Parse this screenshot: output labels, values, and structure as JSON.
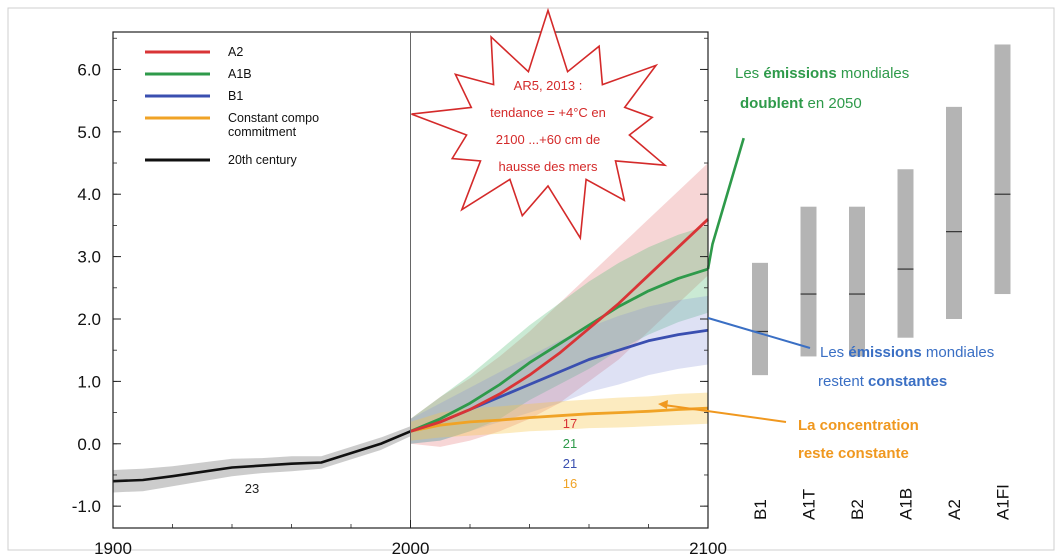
{
  "chart_data": {
    "type": "line",
    "xlim": [
      1900,
      2100
    ],
    "ylim": [
      -1.35,
      6.6
    ],
    "x_ticks": [
      "1900",
      "2000",
      "2100"
    ],
    "y_ticks": [
      "6.0",
      "5.0",
      "4.0",
      "3.0",
      "2.0",
      "1.0",
      "0.0",
      "-1.0"
    ],
    "legend_position": "top-left",
    "series": [
      {
        "name": "A2",
        "color": "#d93436",
        "x": [
          2000,
          2010,
          2020,
          2030,
          2040,
          2050,
          2060,
          2070,
          2080,
          2090,
          2100
        ],
        "y": [
          0.2,
          0.35,
          0.55,
          0.8,
          1.1,
          1.45,
          1.85,
          2.25,
          2.7,
          3.15,
          3.6
        ],
        "band": [
          0.2,
          0.4,
          0.5,
          0.6,
          0.7,
          0.8,
          0.85,
          0.9,
          0.9,
          0.9,
          0.9
        ]
      },
      {
        "name": "A1B",
        "color": "#2e9a4a",
        "x": [
          2000,
          2010,
          2020,
          2030,
          2040,
          2050,
          2060,
          2070,
          2080,
          2090,
          2100
        ],
        "y": [
          0.2,
          0.4,
          0.65,
          0.95,
          1.3,
          1.6,
          1.9,
          2.2,
          2.45,
          2.65,
          2.8
        ],
        "band": [
          0.2,
          0.35,
          0.45,
          0.55,
          0.6,
          0.65,
          0.7,
          0.7,
          0.7,
          0.7,
          0.7
        ]
      },
      {
        "name": "B1",
        "color": "#3a4fb0",
        "x": [
          2000,
          2010,
          2020,
          2030,
          2040,
          2050,
          2060,
          2070,
          2080,
          2090,
          2100
        ],
        "y": [
          0.2,
          0.35,
          0.55,
          0.75,
          0.95,
          1.15,
          1.35,
          1.5,
          1.65,
          1.75,
          1.82
        ],
        "band": [
          0.2,
          0.3,
          0.35,
          0.4,
          0.45,
          0.5,
          0.52,
          0.55,
          0.55,
          0.55,
          0.55
        ]
      },
      {
        "name": "Constant composition commitment",
        "color": "#f0a326",
        "x": [
          2000,
          2010,
          2020,
          2030,
          2040,
          2050,
          2060,
          2070,
          2080,
          2090,
          2100
        ],
        "y": [
          0.2,
          0.3,
          0.35,
          0.38,
          0.42,
          0.45,
          0.48,
          0.5,
          0.52,
          0.55,
          0.57
        ],
        "band": [
          0.15,
          0.2,
          0.22,
          0.22,
          0.22,
          0.23,
          0.23,
          0.24,
          0.24,
          0.25,
          0.25
        ]
      },
      {
        "name": "20th century",
        "color": "#111111",
        "x": [
          1900,
          1910,
          1920,
          1930,
          1940,
          1950,
          1960,
          1970,
          1980,
          1990,
          2000
        ],
        "y": [
          -0.6,
          -0.58,
          -0.52,
          -0.45,
          -0.38,
          -0.35,
          -0.32,
          -0.3,
          -0.15,
          0.0,
          0.2
        ],
        "band": [
          0.18,
          0.18,
          0.16,
          0.15,
          0.14,
          0.12,
          0.12,
          0.1,
          0.1,
          0.1,
          0.08
        ]
      }
    ],
    "legend_labels": [
      "A2",
      "A1B",
      "B1",
      "Constant compo",
      "commitment",
      "20th century"
    ],
    "bars_2100": [
      {
        "scenario": "B1",
        "low": 1.1,
        "high": 2.9,
        "best": 1.8
      },
      {
        "scenario": "A1T",
        "low": 1.4,
        "high": 3.8,
        "best": 2.4
      },
      {
        "scenario": "B2",
        "low": 1.4,
        "high": 3.8,
        "best": 2.4
      },
      {
        "scenario": "A1B",
        "low": 1.7,
        "high": 4.4,
        "best": 2.8
      },
      {
        "scenario": "A2",
        "low": 2.0,
        "high": 5.4,
        "best": 3.4
      },
      {
        "scenario": "A1FI",
        "low": 2.4,
        "high": 6.4,
        "best": 4.0
      }
    ],
    "model_counts": {
      "twentieth": "23",
      "scenarios": [
        {
          "value": "17",
          "color": "#d93436"
        },
        {
          "value": "21",
          "color": "#2e9a4a"
        },
        {
          "value": "21",
          "color": "#3a4fb0"
        },
        {
          "value": "16",
          "color": "#f0a326"
        }
      ]
    },
    "emission_doubling_line": {
      "x": [
        2100,
        2101.5,
        2112
      ],
      "y": [
        2.8,
        3.2,
        4.9
      ],
      "color": "#2e9a4a"
    },
    "annotations": {
      "star_lines": [
        "AR5, 2013 :",
        "tendance = +4°C en",
        "2100 ...+60 cm de",
        "hausse des mers"
      ],
      "green_line1": "Les ",
      "green_bold1": "émissions",
      "green_rest1": " mondiales",
      "green_bold2": "doublent",
      "green_rest2": " en 2050",
      "blue_line1": "Les ",
      "blue_bold1": "émissions",
      "blue_rest1": " mondiales",
      "blue_line2": "restent ",
      "blue_bold2": "constantes",
      "orange_bold1": "La concentration",
      "orange_bold2": "reste constante"
    },
    "colors": {
      "star": "#d42a2a",
      "green": "#2e9a4a",
      "blue": "#3a6fc4",
      "orange": "#f0981f",
      "bar": "#b4b4b4"
    }
  }
}
